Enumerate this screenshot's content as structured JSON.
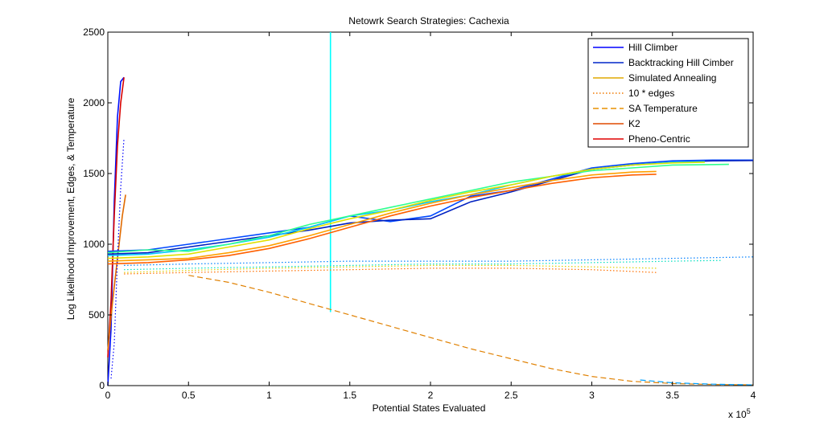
{
  "chart_data": {
    "type": "line",
    "title": "Netowrk Search Strategies: Cachexia",
    "xlabel": "Potential States Evaluated",
    "ylabel": "Log Likelihood Improvement, Edges, & Temperature",
    "x_multiplier_label": "x 10",
    "x_multiplier_exponent": "5",
    "xlim": [
      0,
      4
    ],
    "ylim": [
      0,
      2500
    ],
    "xticks": [
      "0",
      "0.5",
      "1",
      "1.5",
      "2",
      "2.5",
      "3",
      "3.5",
      "4"
    ],
    "yticks": [
      "0",
      "500",
      "1000",
      "1500",
      "2000",
      "2500"
    ],
    "grid": false,
    "legend_position": "top-right",
    "legend": [
      {
        "name": "Hill Climber",
        "color": "#0000ff",
        "style": "solid"
      },
      {
        "name": "Backtracking Hill Cimber",
        "color": "#0026c9",
        "style": "solid"
      },
      {
        "name": "Simulated Annealing",
        "color": "#e0a800",
        "style": "solid"
      },
      {
        "name": "10 * edges",
        "color": "#f07800",
        "style": "dotted"
      },
      {
        "name": "SA Temperature",
        "color": "#e89000",
        "style": "dashed"
      },
      {
        "name": "K2",
        "color": "#e04a00",
        "style": "solid"
      },
      {
        "name": "Pheno-Centric",
        "color": "#e00000",
        "style": "solid"
      }
    ],
    "series": [
      {
        "color": "#0010ff",
        "style": "solid",
        "x": [
          0.0,
          0.02,
          0.04,
          0.06,
          0.08,
          0.1
        ],
        "y": [
          0,
          400,
          1300,
          1900,
          2150,
          2180
        ]
      },
      {
        "color": "#d80000",
        "style": "solid",
        "x": [
          0.0,
          0.02,
          0.04,
          0.06,
          0.08,
          0.1
        ],
        "y": [
          200,
          600,
          1200,
          1700,
          2000,
          2180
        ]
      },
      {
        "color": "#e06a00",
        "style": "solid",
        "x": [
          0.0,
          0.03,
          0.06,
          0.09,
          0.11
        ],
        "y": [
          250,
          600,
          900,
          1200,
          1350
        ]
      },
      {
        "color": "#0000ff",
        "style": "dotted",
        "x": [
          0.02,
          0.04,
          0.06,
          0.08,
          0.1
        ],
        "y": [
          50,
          300,
          900,
          1400,
          1750
        ]
      },
      {
        "color": "#00ffff",
        "style": "solid",
        "x": [
          1.38,
          1.38
        ],
        "y": [
          520,
          2500
        ]
      },
      {
        "color": "#0048ff",
        "style": "solid",
        "x": [
          0,
          0.25,
          0.5,
          0.75,
          1.0,
          1.25,
          1.5,
          1.75,
          2.0,
          2.25,
          2.5,
          2.75,
          3.0,
          3.25,
          3.5,
          3.75,
          4.0
        ],
        "y": [
          950,
          960,
          1000,
          1040,
          1080,
          1120,
          1200,
          1160,
          1200,
          1340,
          1380,
          1460,
          1540,
          1570,
          1590,
          1595,
          1595
        ]
      },
      {
        "color": "#0020c0",
        "style": "solid",
        "x": [
          0,
          0.25,
          0.5,
          0.75,
          1.0,
          1.25,
          1.5,
          1.75,
          2.0,
          2.25,
          2.5,
          2.75,
          3.0,
          3.25,
          3.5,
          3.75,
          4.0
        ],
        "y": [
          930,
          940,
          980,
          1020,
          1060,
          1100,
          1150,
          1170,
          1180,
          1300,
          1370,
          1450,
          1530,
          1560,
          1580,
          1590,
          1592
        ]
      },
      {
        "color": "#00c8ff",
        "style": "solid",
        "x": [
          0,
          0.25,
          0.5,
          0.75,
          1.0,
          1.25,
          1.5,
          1.75,
          2.0,
          2.25,
          2.5,
          2.75,
          3.0,
          3.25,
          3.5,
          3.7
        ],
        "y": [
          920,
          930,
          960,
          1000,
          1050,
          1120,
          1200,
          1240,
          1300,
          1350,
          1420,
          1480,
          1530,
          1560,
          1580,
          1585
        ]
      },
      {
        "color": "#30ff90",
        "style": "solid",
        "x": [
          0,
          0.25,
          0.5,
          0.75,
          1.0,
          1.25,
          1.5,
          1.75,
          2.0,
          2.25,
          2.5,
          2.75,
          3.0,
          3.25,
          3.5,
          3.85
        ],
        "y": [
          940,
          960,
          950,
          1000,
          1060,
          1140,
          1200,
          1260,
          1320,
          1380,
          1440,
          1480,
          1520,
          1540,
          1560,
          1565
        ]
      },
      {
        "color": "#e0e000",
        "style": "solid",
        "x": [
          0,
          0.25,
          0.5,
          0.75,
          1.0,
          1.25,
          1.5,
          1.75,
          2.0,
          2.25,
          2.5,
          2.75,
          3.0,
          3.25,
          3.5,
          3.7
        ],
        "y": [
          900,
          910,
          930,
          980,
          1030,
          1110,
          1180,
          1240,
          1310,
          1370,
          1420,
          1480,
          1530,
          1560,
          1575,
          1580
        ]
      },
      {
        "color": "#ffa000",
        "style": "solid",
        "x": [
          0,
          0.25,
          0.5,
          0.75,
          1.0,
          1.25,
          1.5,
          1.75,
          2.0,
          2.25,
          2.5,
          2.75,
          3.0,
          3.25,
          3.4
        ],
        "y": [
          880,
          890,
          900,
          940,
          990,
          1060,
          1140,
          1220,
          1290,
          1350,
          1400,
          1450,
          1490,
          1510,
          1515
        ]
      },
      {
        "color": "#ff6000",
        "style": "solid",
        "x": [
          0,
          0.25,
          0.5,
          0.75,
          1.0,
          1.25,
          1.5,
          1.75,
          2.0,
          2.25,
          2.5,
          2.75,
          3.0,
          3.25,
          3.4
        ],
        "y": [
          860,
          870,
          890,
          920,
          970,
          1040,
          1120,
          1200,
          1270,
          1330,
          1380,
          1430,
          1470,
          1490,
          1495
        ]
      },
      {
        "color": "#e08000",
        "style": "dashed",
        "x": [
          0.5,
          0.75,
          1.0,
          1.25,
          1.5,
          1.75,
          2.0,
          2.25,
          2.5,
          2.75,
          3.0,
          3.25,
          3.5,
          3.75,
          4.0
        ],
        "y": [
          780,
          730,
          660,
          580,
          500,
          420,
          340,
          260,
          190,
          120,
          65,
          30,
          15,
          8,
          5
        ]
      },
      {
        "color": "#00a0ff",
        "style": "dashed",
        "x": [
          3.3,
          3.5,
          3.75,
          4.0
        ],
        "y": [
          40,
          20,
          10,
          5
        ]
      },
      {
        "color": "#0080ff",
        "style": "dotted",
        "x": [
          0.1,
          0.5,
          1.0,
          1.5,
          2.0,
          2.5,
          3.0,
          3.5,
          4.0
        ],
        "y": [
          850,
          860,
          870,
          880,
          880,
          880,
          890,
          900,
          910
        ]
      },
      {
        "color": "#00e0c0",
        "style": "dotted",
        "x": [
          0.1,
          0.5,
          1.0,
          1.5,
          2.0,
          2.5,
          3.0,
          3.5,
          3.8
        ],
        "y": [
          820,
          830,
          840,
          850,
          860,
          860,
          870,
          880,
          885
        ]
      },
      {
        "color": "#e0d000",
        "style": "dotted",
        "x": [
          0.1,
          0.5,
          1.0,
          1.5,
          2.0,
          2.5,
          3.0,
          3.4
        ],
        "y": [
          800,
          815,
          830,
          840,
          850,
          850,
          840,
          830
        ]
      },
      {
        "color": "#ff7000",
        "style": "dotted",
        "x": [
          0.1,
          0.5,
          1.0,
          1.5,
          2.0,
          2.5,
          3.0,
          3.4
        ],
        "y": [
          790,
          800,
          810,
          820,
          830,
          830,
          820,
          800
        ]
      }
    ]
  }
}
